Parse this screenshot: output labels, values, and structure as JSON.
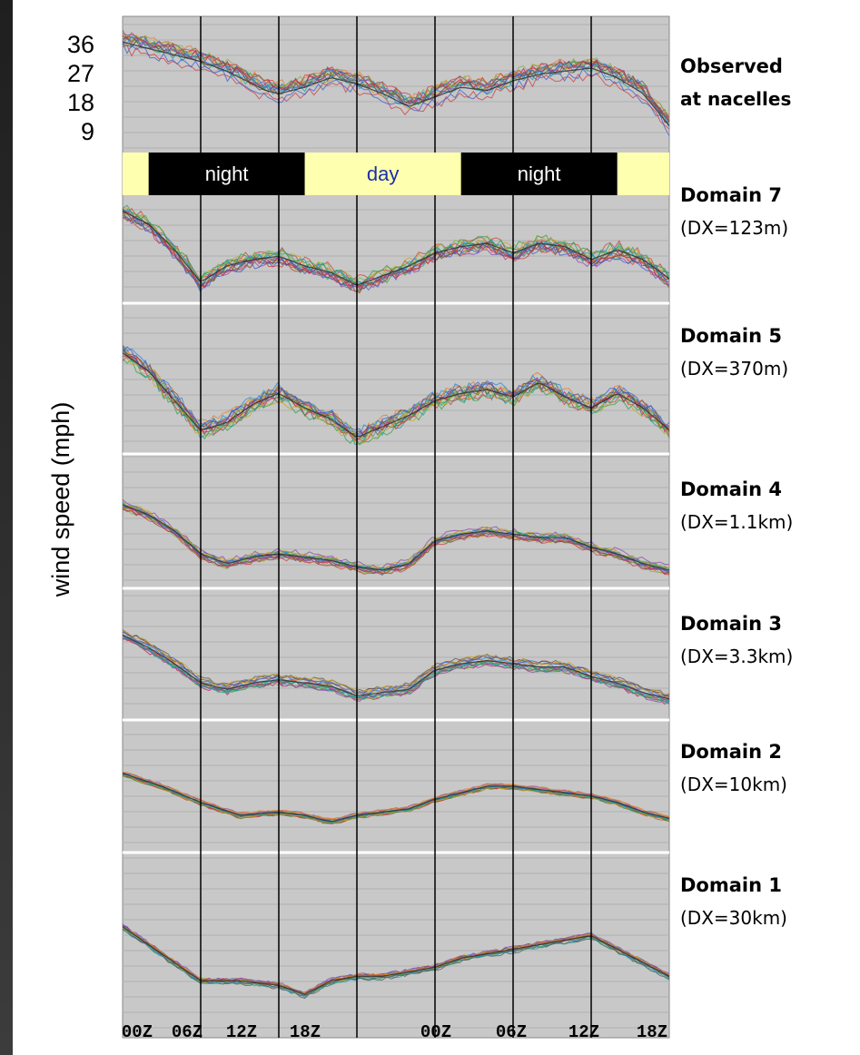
{
  "chart_data": {
    "type": "line",
    "ylabel": "wind speed (mph)",
    "y_ticks_top_panel": [
      "36",
      "27",
      "18",
      "9"
    ],
    "ylim_top_panel": [
      0,
      40
    ],
    "x_ticks": [
      "00Z",
      "06Z",
      "12Z",
      "18Z",
      "00Z",
      "06Z",
      "12Z",
      "18Z"
    ],
    "time_hours_range": [
      0,
      42
    ],
    "vertical_lines_at_hours": [
      6,
      12,
      18,
      24,
      30,
      36
    ],
    "day_night_bar": [
      {
        "label": "night",
        "start_hour": 2,
        "end_hour": 14
      },
      {
        "label": "day",
        "start_hour": 14,
        "end_hour": 26
      },
      {
        "label": "night",
        "start_hour": 26,
        "end_hour": 38
      }
    ],
    "panels": [
      {
        "name": "Observed",
        "name2": "at nacelles",
        "spread": 2.6,
        "points": [
          [
            0,
            32
          ],
          [
            2,
            30
          ],
          [
            4,
            28
          ],
          [
            6,
            26
          ],
          [
            8,
            23
          ],
          [
            10,
            19
          ],
          [
            11,
            17
          ],
          [
            12,
            16
          ],
          [
            14,
            18
          ],
          [
            16,
            21
          ],
          [
            18,
            19
          ],
          [
            20,
            16
          ],
          [
            22,
            12
          ],
          [
            24,
            15
          ],
          [
            26,
            18
          ],
          [
            28,
            17
          ],
          [
            30,
            20
          ],
          [
            32,
            22
          ],
          [
            34,
            23
          ],
          [
            36,
            24
          ],
          [
            38,
            21
          ],
          [
            40,
            16
          ],
          [
            42,
            6
          ]
        ]
      },
      {
        "name": "Domain 7",
        "name2": "(DX=123m)",
        "spread": 1.8,
        "points": [
          [
            0,
            28
          ],
          [
            2,
            24
          ],
          [
            4,
            16
          ],
          [
            6,
            6
          ],
          [
            8,
            11
          ],
          [
            10,
            13
          ],
          [
            12,
            14
          ],
          [
            14,
            11
          ],
          [
            16,
            9
          ],
          [
            18,
            5
          ],
          [
            20,
            8
          ],
          [
            22,
            11
          ],
          [
            24,
            15
          ],
          [
            26,
            17
          ],
          [
            28,
            18
          ],
          [
            30,
            15
          ],
          [
            32,
            18
          ],
          [
            34,
            17
          ],
          [
            36,
            13
          ],
          [
            38,
            16
          ],
          [
            40,
            13
          ],
          [
            42,
            7
          ]
        ]
      },
      {
        "name": "Domain 5",
        "name2": "(DX=370m)",
        "spread": 1.6,
        "points": [
          [
            0,
            27
          ],
          [
            2,
            22
          ],
          [
            4,
            14
          ],
          [
            6,
            6
          ],
          [
            8,
            8
          ],
          [
            10,
            13
          ],
          [
            12,
            16
          ],
          [
            14,
            12
          ],
          [
            16,
            9
          ],
          [
            18,
            4
          ],
          [
            20,
            7
          ],
          [
            22,
            10
          ],
          [
            24,
            14
          ],
          [
            26,
            16
          ],
          [
            28,
            17
          ],
          [
            30,
            15
          ],
          [
            32,
            19
          ],
          [
            34,
            15
          ],
          [
            36,
            12
          ],
          [
            38,
            16
          ],
          [
            40,
            12
          ],
          [
            42,
            6
          ]
        ]
      },
      {
        "name": "Domain 4",
        "name2": "(DX=1.1km)",
        "spread": 1.4,
        "points": [
          [
            0,
            25
          ],
          [
            2,
            22
          ],
          [
            4,
            17
          ],
          [
            6,
            10
          ],
          [
            8,
            7
          ],
          [
            10,
            9
          ],
          [
            12,
            10
          ],
          [
            14,
            9
          ],
          [
            16,
            8
          ],
          [
            18,
            6
          ],
          [
            20,
            5
          ],
          [
            22,
            7
          ],
          [
            24,
            14
          ],
          [
            26,
            16
          ],
          [
            28,
            17
          ],
          [
            30,
            16
          ],
          [
            32,
            15
          ],
          [
            34,
            15
          ],
          [
            36,
            12
          ],
          [
            38,
            10
          ],
          [
            40,
            7
          ],
          [
            42,
            5
          ]
        ]
      },
      {
        "name": "Domain 3",
        "name2": "(DX=3.3km)",
        "spread": 1.5,
        "points": [
          [
            0,
            26
          ],
          [
            2,
            22
          ],
          [
            4,
            17
          ],
          [
            6,
            11
          ],
          [
            8,
            9
          ],
          [
            10,
            11
          ],
          [
            12,
            12
          ],
          [
            14,
            11
          ],
          [
            16,
            10
          ],
          [
            18,
            7
          ],
          [
            20,
            8
          ],
          [
            22,
            9
          ],
          [
            24,
            15
          ],
          [
            26,
            17
          ],
          [
            28,
            18
          ],
          [
            30,
            17
          ],
          [
            32,
            16
          ],
          [
            34,
            16
          ],
          [
            36,
            13
          ],
          [
            38,
            11
          ],
          [
            40,
            8
          ],
          [
            42,
            6
          ]
        ]
      },
      {
        "name": "Domain 2",
        "name2": "(DX=10km)",
        "spread": 0.9,
        "points": [
          [
            0,
            24
          ],
          [
            3,
            20
          ],
          [
            6,
            15
          ],
          [
            9,
            11
          ],
          [
            12,
            12
          ],
          [
            14,
            11
          ],
          [
            16,
            9
          ],
          [
            18,
            11
          ],
          [
            20,
            12
          ],
          [
            22,
            13
          ],
          [
            24,
            16
          ],
          [
            26,
            18
          ],
          [
            28,
            20
          ],
          [
            30,
            20
          ],
          [
            32,
            19
          ],
          [
            34,
            18
          ],
          [
            36,
            17
          ],
          [
            38,
            15
          ],
          [
            40,
            12
          ],
          [
            42,
            10
          ]
        ]
      },
      {
        "name": "Domain 1",
        "name2": "(DX=30km)",
        "spread": 0.6,
        "points": [
          [
            0,
            24
          ],
          [
            3,
            18
          ],
          [
            6,
            12
          ],
          [
            9,
            12
          ],
          [
            12,
            11
          ],
          [
            14,
            9
          ],
          [
            16,
            12
          ],
          [
            18,
            13
          ],
          [
            20,
            13
          ],
          [
            22,
            14
          ],
          [
            24,
            15
          ],
          [
            26,
            17
          ],
          [
            28,
            18
          ],
          [
            30,
            19
          ],
          [
            32,
            20
          ],
          [
            34,
            21
          ],
          [
            36,
            22
          ],
          [
            38,
            19
          ],
          [
            40,
            16
          ],
          [
            42,
            13
          ]
        ]
      }
    ]
  }
}
